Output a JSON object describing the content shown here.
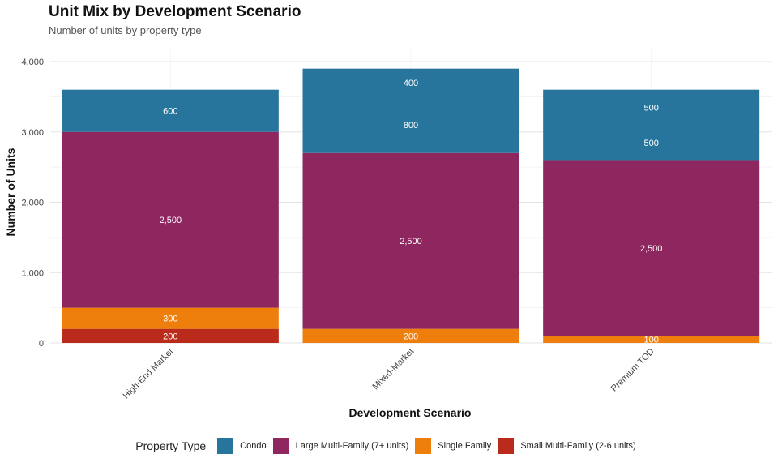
{
  "chart_data": {
    "type": "bar",
    "stacked": true,
    "title": "Unit Mix by Development Scenario",
    "subtitle": "Number of units by property type",
    "xlabel": "Development Scenario",
    "ylabel": "Number of Units",
    "ylim": [
      0,
      4000
    ],
    "yticks": [
      0,
      1000,
      2000,
      3000,
      4000
    ],
    "ytick_labels": [
      "0",
      "1,000",
      "2,000",
      "3,000",
      "4,000"
    ],
    "grid": true,
    "legend_position": "bottom",
    "legend_title": "Property Type",
    "categories": [
      "High-End Market",
      "Mixed-Market",
      "Premium TOD"
    ],
    "series": [
      {
        "name": "Small Multi-Family (2-6 units)",
        "color": "#BA2B1B",
        "segments": [
          [
            {
              "value": 200,
              "label": "200"
            }
          ],
          [],
          []
        ]
      },
      {
        "name": "Single Family",
        "color": "#EE7F0D",
        "segments": [
          [
            {
              "value": 300,
              "label": "300"
            }
          ],
          [
            {
              "value": 200,
              "label": "200"
            }
          ],
          [
            {
              "value": 100,
              "label": "100"
            }
          ]
        ]
      },
      {
        "name": "Large Multi-Family (7+ units)",
        "color": "#8E2660",
        "segments": [
          [
            {
              "value": 2500,
              "label": "2,500"
            }
          ],
          [
            {
              "value": 2500,
              "label": "2,500"
            }
          ],
          [
            {
              "value": 2500,
              "label": "2,500"
            }
          ]
        ]
      },
      {
        "name": "Condo",
        "color": "#27759C",
        "segments": [
          [
            {
              "value": 600,
              "label": "600"
            }
          ],
          [
            {
              "value": 800,
              "label": "800"
            },
            {
              "value": 400,
              "label": "400"
            }
          ],
          [
            {
              "value": 500,
              "label": "500"
            },
            {
              "value": 500,
              "label": "500"
            }
          ]
        ]
      }
    ],
    "legend_order": [
      "Condo",
      "Large Multi-Family (7+ units)",
      "Single Family",
      "Small Multi-Family (2-6 units)"
    ]
  }
}
